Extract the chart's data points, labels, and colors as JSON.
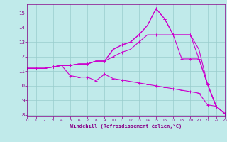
{
  "background_color": "#c0eaea",
  "grid_color": "#99cccc",
  "line_color": "#cc00cc",
  "spine_color": "#880088",
  "tick_color": "#880088",
  "xlabel": "Windchill (Refroidissement éolien,°C)",
  "xlim": [
    0,
    23
  ],
  "ylim": [
    7.9,
    15.6
  ],
  "yticks": [
    8,
    9,
    10,
    11,
    12,
    13,
    14,
    15
  ],
  "xticks": [
    0,
    1,
    2,
    3,
    4,
    5,
    6,
    7,
    8,
    9,
    10,
    11,
    12,
    13,
    14,
    15,
    16,
    17,
    18,
    19,
    20,
    21,
    22,
    23
  ],
  "series": [
    {
      "x": [
        0,
        1,
        2,
        3,
        4,
        5,
        6,
        7,
        8,
        9,
        10,
        11,
        12,
        13,
        14,
        15,
        16,
        17,
        18,
        19,
        20,
        21,
        22,
        23
      ],
      "y": [
        11.2,
        11.2,
        11.2,
        11.3,
        11.4,
        10.7,
        10.6,
        10.6,
        10.35,
        10.8,
        10.5,
        10.4,
        10.3,
        10.2,
        10.1,
        10.0,
        9.9,
        9.8,
        9.7,
        9.6,
        9.5,
        8.7,
        8.6,
        8.1
      ]
    },
    {
      "x": [
        0,
        1,
        2,
        3,
        4,
        5,
        6,
        7,
        8,
        9,
        10,
        11,
        12,
        13,
        14,
        15,
        16,
        17,
        18,
        19,
        20,
        21,
        22,
        23
      ],
      "y": [
        11.2,
        11.2,
        11.2,
        11.3,
        11.4,
        11.4,
        11.5,
        11.5,
        11.7,
        11.7,
        12.0,
        12.3,
        12.5,
        13.0,
        13.5,
        13.5,
        13.5,
        13.5,
        13.5,
        13.5,
        12.5,
        10.1,
        8.6,
        8.1
      ]
    },
    {
      "x": [
        0,
        1,
        2,
        3,
        4,
        5,
        6,
        7,
        8,
        9,
        10,
        11,
        12,
        13,
        14,
        15,
        16,
        17,
        18,
        19,
        20,
        21,
        22,
        23
      ],
      "y": [
        11.2,
        11.2,
        11.2,
        11.3,
        11.4,
        11.4,
        11.5,
        11.5,
        11.7,
        11.7,
        12.5,
        12.8,
        13.0,
        13.5,
        14.15,
        15.3,
        14.6,
        13.5,
        13.5,
        13.5,
        11.85,
        10.1,
        8.6,
        8.1
      ]
    },
    {
      "x": [
        0,
        1,
        2,
        3,
        4,
        5,
        6,
        7,
        8,
        9,
        10,
        11,
        12,
        13,
        14,
        15,
        16,
        17,
        18,
        19,
        20,
        21,
        22,
        23
      ],
      "y": [
        11.2,
        11.2,
        11.2,
        11.3,
        11.4,
        11.4,
        11.5,
        11.5,
        11.7,
        11.7,
        12.5,
        12.8,
        13.0,
        13.5,
        14.15,
        15.3,
        14.6,
        13.5,
        11.85,
        11.85,
        11.85,
        10.1,
        8.6,
        8.1
      ]
    }
  ]
}
